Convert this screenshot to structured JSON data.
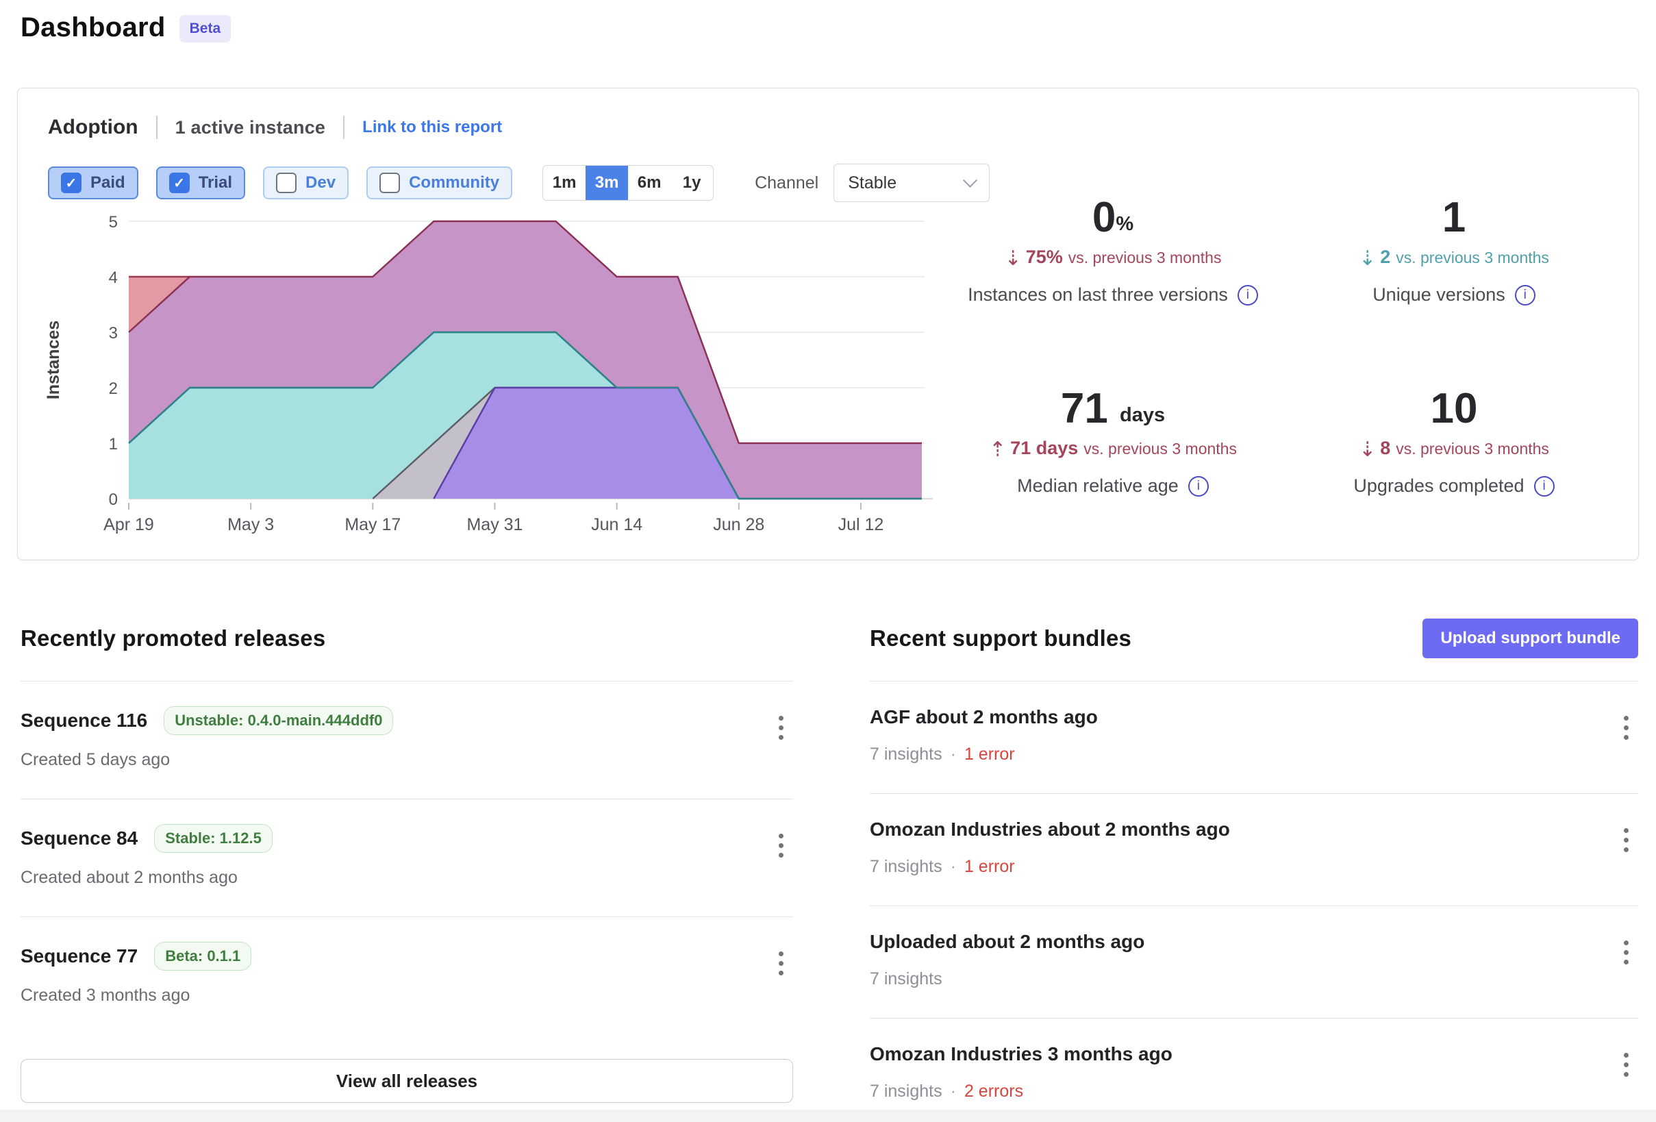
{
  "page": {
    "title": "Dashboard",
    "beta_badge": "Beta"
  },
  "adoption": {
    "title": "Adoption",
    "subtitle": "1 active instance",
    "report_link": "Link to this report",
    "filters": [
      {
        "label": "Paid",
        "checked": true
      },
      {
        "label": "Trial",
        "checked": true
      },
      {
        "label": "Dev",
        "checked": false
      },
      {
        "label": "Community",
        "checked": false
      }
    ],
    "ranges": [
      {
        "label": "1m",
        "active": false
      },
      {
        "label": "3m",
        "active": true
      },
      {
        "label": "6m",
        "active": false
      },
      {
        "label": "1y",
        "active": false
      }
    ],
    "channel_label": "Channel",
    "channel_value": "Stable",
    "stats": [
      {
        "value": "0",
        "unit": "%",
        "arrow": "⇣",
        "arrow_icon": "arrow-down-dashed",
        "delta": "75%",
        "delta_suffix": "vs. previous 3 months",
        "label": "Instances on last three versions",
        "trend_color": "#a4455c"
      },
      {
        "value": "1",
        "unit": "",
        "arrow": "⇣",
        "arrow_icon": "arrow-down-dashed",
        "delta": "2",
        "delta_suffix": "vs. previous 3 months",
        "label": "Unique versions",
        "trend_color": "#4fa0ab"
      },
      {
        "value": "71",
        "unit": "days",
        "arrow": "⇡",
        "arrow_icon": "arrow-up-dashed",
        "delta": "71 days",
        "delta_suffix": "vs. previous 3 months",
        "label": "Median relative age",
        "trend_color": "#a4455c"
      },
      {
        "value": "10",
        "unit": "",
        "arrow": "⇣",
        "arrow_icon": "arrow-down-dashed",
        "delta": "8",
        "delta_suffix": "vs. previous 3 months",
        "label": "Upgrades completed",
        "trend_color": "#a4455c"
      }
    ]
  },
  "chart_data": {
    "type": "area",
    "ylabel": "Instances",
    "ylim": [
      0,
      5
    ],
    "yticks": [
      0,
      1,
      2,
      3,
      4,
      5
    ],
    "n_points": 14,
    "x_unit": "weekly points from Apr 19 to Jul 19",
    "x_ticks": [
      {
        "index": 0,
        "label": "Apr 19"
      },
      {
        "index": 2,
        "label": "May 3"
      },
      {
        "index": 4,
        "label": "May 17"
      },
      {
        "index": 6,
        "label": "May 31"
      },
      {
        "index": 8,
        "label": "Jun 14"
      },
      {
        "index": 10,
        "label": "Jun 28"
      },
      {
        "index": 12,
        "label": "Jul 12"
      }
    ],
    "grid": true,
    "legend": "none",
    "series": [
      {
        "name": "series-1-salmon",
        "fill": "#e49aa3",
        "stroke": "#9c3a50",
        "values": [
          4,
          4,
          null,
          null,
          null,
          null,
          null,
          null,
          null,
          null,
          null,
          null,
          null,
          null
        ]
      },
      {
        "name": "series-2-mauve",
        "fill": "#c794c7",
        "stroke": "#8a3155",
        "values": [
          3,
          4,
          4,
          4,
          4,
          5,
          5,
          5,
          4,
          4,
          1,
          1,
          1,
          1
        ]
      },
      {
        "name": "series-3-teal",
        "fill": "#a6e1df",
        "stroke": "#2f8289",
        "restroke": true,
        "values": [
          1,
          2,
          2,
          2,
          2,
          3,
          3,
          3,
          2,
          2,
          0,
          0,
          0,
          0
        ]
      },
      {
        "name": "series-4-gray",
        "fill": "#c3c0ca",
        "stroke": "#5d5d68",
        "values": [
          null,
          null,
          null,
          null,
          0,
          1,
          2,
          2,
          2,
          2,
          0,
          null,
          null,
          null
        ]
      },
      {
        "name": "series-5-purple",
        "fill": "#a78ce8",
        "stroke": "#5a3fa6",
        "values": [
          null,
          null,
          null,
          null,
          null,
          0,
          2,
          2,
          2,
          2,
          0,
          null,
          null,
          null
        ]
      }
    ]
  },
  "releases": {
    "heading": "Recently promoted releases",
    "items": [
      {
        "title": "Sequence 116",
        "badge": "Unstable: 0.4.0-main.444ddf0",
        "created": "Created 5 days ago"
      },
      {
        "title": "Sequence 84",
        "badge": "Stable: 1.12.5",
        "created": "Created about 2 months ago"
      },
      {
        "title": "Sequence 77",
        "badge": "Beta: 0.1.1",
        "created": "Created 3 months ago"
      }
    ],
    "view_all_label": "View all releases",
    "badge_color": "#3f7e3e"
  },
  "bundles": {
    "heading": "Recent support bundles",
    "upload_label": "Upload support bundle",
    "separator": "·",
    "items": [
      {
        "title": "AGF about 2 months ago",
        "insights": "7 insights",
        "errors": "1 error"
      },
      {
        "title": "Omozan Industries about 2 months ago",
        "insights": "7 insights",
        "errors": "1 error"
      },
      {
        "title": "Uploaded about 2 months ago",
        "insights": "7 insights",
        "errors": ""
      },
      {
        "title": "Omozan Industries 3 months ago",
        "insights": "7 insights",
        "errors": "2 errors"
      }
    ],
    "error_color": "#d8453c",
    "upload_button_color": "#6c6bf1"
  }
}
